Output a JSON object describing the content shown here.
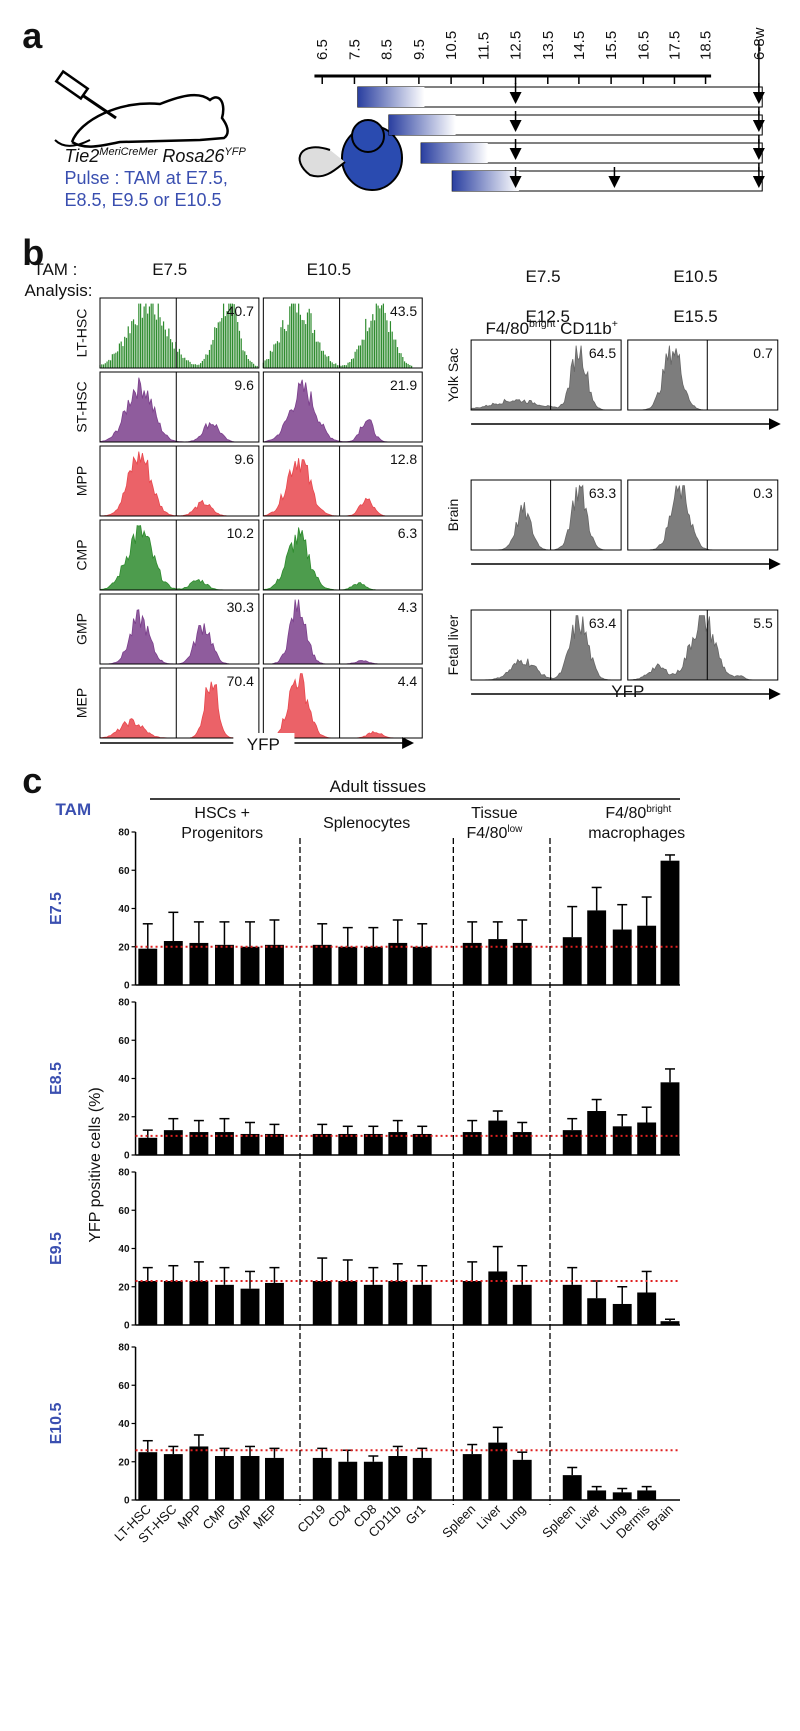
{
  "panel_a": {
    "letter": "a",
    "timeline": [
      "6.5",
      "7.5",
      "8.5",
      "9.5",
      "10.5",
      "11.5",
      "12.5",
      "13.5",
      "14.5",
      "15.5",
      "16.5",
      "17.5",
      "18.5",
      "6-8w"
    ],
    "genotype": [
      {
        "main": "Tie2",
        "sup": "MeriCreMer"
      },
      {
        "main": " Rosa26",
        "sup": "YFP"
      }
    ],
    "pulse": [
      "Pulse : TAM at E7.5,",
      "E8.5, E9.5 or E10.5"
    ]
  },
  "panel_b": {
    "letter": "b",
    "tam_label": "TAM :",
    "analysis_label": "Analysis:",
    "left_columns": [
      "E7.5",
      "E10.5"
    ],
    "left_rows": [
      {
        "name": "LT-HSC",
        "values": [
          40.7,
          43.5
        ]
      },
      {
        "name": "ST-HSC",
        "values": [
          9.6,
          21.9
        ]
      },
      {
        "name": "MPP",
        "values": [
          9.6,
          12.8
        ]
      },
      {
        "name": "CMP",
        "values": [
          10.2,
          6.3
        ]
      },
      {
        "name": "GMP",
        "values": [
          30.3,
          4.3
        ]
      },
      {
        "name": "MEP",
        "values": [
          70.4,
          4.4
        ]
      }
    ],
    "left_axis_label": "YFP",
    "right_columns": [
      "E7.5",
      "E10.5"
    ],
    "right_analysis": [
      "E12.5",
      "E15.5"
    ],
    "right_title": [
      {
        "text": "F4/80"
      },
      {
        "text": "bright",
        "sup": true
      },
      {
        "text": " CD11b"
      },
      {
        "text": "+",
        "sup": true
      }
    ],
    "right_rows": [
      {
        "name": "Yolk Sac",
        "values": [
          64.5,
          0.7
        ]
      },
      {
        "name": "Brain",
        "values": [
          63.3,
          0.3
        ]
      },
      {
        "name": "Fetal liver",
        "values": [
          63.4,
          5.5
        ]
      }
    ],
    "right_axis_label": "YFP"
  },
  "panel_c": {
    "letter": "c",
    "tam_heading": "TAM",
    "heading": "Adult tissues",
    "groups": [
      [
        "HSCs +",
        "Progenitors"
      ],
      [
        "Splenocytes"
      ],
      [
        {
          "text": "Tissue"
        },
        {
          "text": "F4/80"
        },
        {
          "text": "low",
          "sup": true
        }
      ],
      [
        {
          "text": "F4/80"
        },
        {
          "text": "bright",
          "sup": true
        },
        {
          "text": "macrophages"
        }
      ]
    ],
    "ylabel": "YFP positive cells (%)"
  },
  "chart_data": [
    {
      "type": "bar",
      "label": "E7.5",
      "color": "#000000",
      "reference": 20,
      "reference_color": "#e02020",
      "values": [
        19,
        23,
        22,
        21,
        20,
        21,
        21,
        20,
        20,
        22,
        20,
        22,
        24,
        22,
        25,
        39,
        29,
        31,
        65
      ],
      "errors": [
        13,
        15,
        11,
        12,
        13,
        13,
        11,
        10,
        10,
        12,
        12,
        11,
        9,
        12,
        16,
        12,
        13,
        15,
        3
      ],
      "ylim": [
        0,
        80
      ],
      "yticks": [
        0,
        20,
        40,
        60,
        80
      ]
    },
    {
      "type": "bar",
      "label": "E8.5",
      "color": "#000000",
      "reference": 10,
      "reference_color": "#e02020",
      "values": [
        9,
        13,
        12,
        12,
        11,
        11,
        11,
        11,
        11,
        12,
        11,
        12,
        18,
        12,
        13,
        23,
        15,
        17,
        38
      ],
      "errors": [
        4,
        6,
        6,
        7,
        6,
        5,
        5,
        4,
        4,
        6,
        4,
        6,
        5,
        5,
        6,
        6,
        6,
        8,
        7
      ],
      "ylim": [
        0,
        80
      ],
      "yticks": [
        0,
        20,
        40,
        60,
        80
      ]
    },
    {
      "type": "bar",
      "label": "E9.5",
      "color": "#000000",
      "reference": 23,
      "reference_color": "#e02020",
      "values": [
        23,
        23,
        23,
        21,
        19,
        22,
        23,
        23,
        21,
        23,
        21,
        23,
        28,
        21,
        21,
        14,
        11,
        17,
        2
      ],
      "errors": [
        7,
        8,
        10,
        9,
        9,
        8,
        12,
        11,
        9,
        9,
        10,
        10,
        13,
        10,
        9,
        9,
        9,
        11,
        1
      ],
      "ylim": [
        0,
        80
      ],
      "yticks": [
        0,
        20,
        40,
        60,
        80
      ]
    },
    {
      "type": "bar",
      "label": "E10.5",
      "color": "#000000",
      "reference": 26,
      "reference_color": "#e02020",
      "categories": [
        "LT-HSC",
        "ST-HSC",
        "MPP",
        "CMP",
        "GMP",
        "MEP",
        "CD19",
        "CD4",
        "CD8",
        "CD11b",
        "Gr1",
        "Spleen",
        "Liver",
        "Lung",
        "Spleen",
        "Liver",
        "Lung",
        "Dermis",
        "Brain"
      ],
      "values": [
        25,
        24,
        28,
        23,
        23,
        22,
        22,
        20,
        20,
        23,
        22,
        24,
        30,
        21,
        13,
        5,
        4,
        5,
        null
      ],
      "errors": [
        6,
        4,
        6,
        4,
        5,
        5,
        5,
        6,
        3,
        5,
        5,
        5,
        8,
        4,
        4,
        2,
        2,
        2,
        null
      ],
      "ylim": [
        0,
        80
      ],
      "yticks": [
        0,
        20,
        40,
        60,
        80
      ]
    }
  ]
}
